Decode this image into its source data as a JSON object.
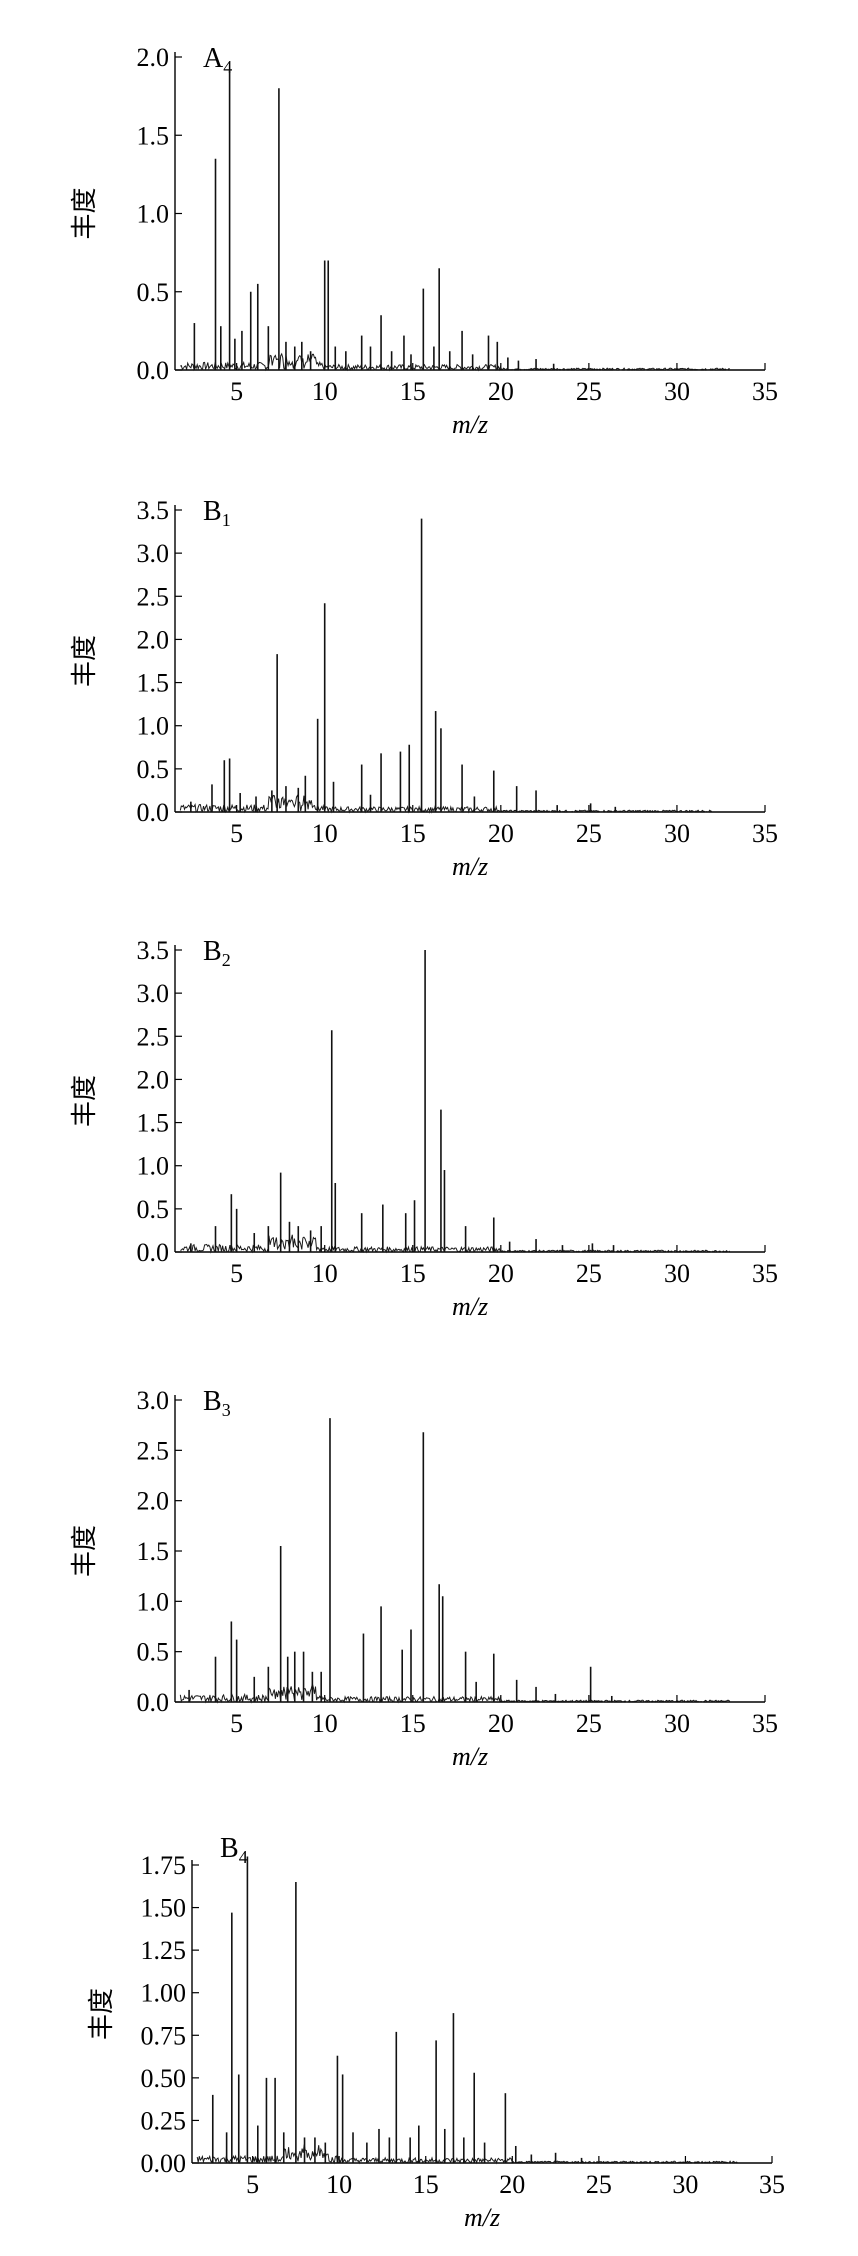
{
  "chart_data": [
    {
      "type": "line",
      "panel_label": "A",
      "panel_subscript": "4",
      "xlabel": "m/z",
      "ylabel": "丰度",
      "xlim": [
        1.5,
        35
      ],
      "ylim": [
        0,
        2.0
      ],
      "xticks": [
        "5",
        "10",
        "15",
        "20",
        "25",
        "30",
        "35"
      ],
      "yticks": [
        "0.0",
        "0.5",
        "1.0",
        "1.5",
        "2.0"
      ],
      "data_end": 33,
      "series": [
        {
          "values": [
            [
              2.6,
              0.3
            ],
            [
              3.8,
              1.35
            ],
            [
              4.1,
              0.28
            ],
            [
              4.6,
              1.92
            ],
            [
              4.9,
              0.2
            ],
            [
              5.3,
              0.25
            ],
            [
              5.8,
              0.5
            ],
            [
              6.2,
              0.55
            ],
            [
              6.8,
              0.28
            ],
            [
              7.4,
              1.8
            ],
            [
              7.8,
              0.18
            ],
            [
              8.3,
              0.15
            ],
            [
              8.7,
              0.18
            ],
            [
              9.2,
              0.12
            ],
            [
              10.0,
              0.7
            ],
            [
              10.2,
              0.7
            ],
            [
              10.6,
              0.15
            ],
            [
              11.2,
              0.12
            ],
            [
              12.1,
              0.22
            ],
            [
              12.6,
              0.15
            ],
            [
              13.2,
              0.35
            ],
            [
              13.8,
              0.12
            ],
            [
              14.5,
              0.22
            ],
            [
              14.9,
              0.1
            ],
            [
              15.6,
              0.52
            ],
            [
              16.2,
              0.15
            ],
            [
              16.5,
              0.65
            ],
            [
              17.1,
              0.12
            ],
            [
              17.8,
              0.25
            ],
            [
              18.4,
              0.1
            ],
            [
              19.3,
              0.22
            ],
            [
              19.8,
              0.18
            ],
            [
              20.4,
              0.08
            ],
            [
              21.0,
              0.06
            ],
            [
              22.0,
              0.07
            ],
            [
              23.0,
              0.04
            ]
          ]
        }
      ]
    },
    {
      "type": "line",
      "panel_label": "B",
      "panel_subscript": "1",
      "xlabel": "m/z",
      "ylabel": "丰度",
      "xlim": [
        1.5,
        35
      ],
      "ylim": [
        0,
        3.5
      ],
      "xticks": [
        "5",
        "10",
        "15",
        "20",
        "25",
        "30",
        "35"
      ],
      "yticks": [
        "0.0",
        "0.5",
        "1.0",
        "1.5",
        "2.0",
        "2.5",
        "3.0",
        "3.5"
      ],
      "data_end": 32,
      "series": [
        {
          "values": [
            [
              2.4,
              0.12
            ],
            [
              3.6,
              0.32
            ],
            [
              4.3,
              0.6
            ],
            [
              4.6,
              0.62
            ],
            [
              5.2,
              0.22
            ],
            [
              6.1,
              0.18
            ],
            [
              7.0,
              0.25
            ],
            [
              7.3,
              1.83
            ],
            [
              7.8,
              0.3
            ],
            [
              8.5,
              0.28
            ],
            [
              8.9,
              0.42
            ],
            [
              9.6,
              1.08
            ],
            [
              10.0,
              2.42
            ],
            [
              10.5,
              0.35
            ],
            [
              12.1,
              0.55
            ],
            [
              12.6,
              0.2
            ],
            [
              13.2,
              0.68
            ],
            [
              14.3,
              0.7
            ],
            [
              14.8,
              0.78
            ],
            [
              15.5,
              3.4
            ],
            [
              16.3,
              1.17
            ],
            [
              16.6,
              0.97
            ],
            [
              17.8,
              0.55
            ],
            [
              18.5,
              0.18
            ],
            [
              19.6,
              0.48
            ],
            [
              20.9,
              0.3
            ],
            [
              22.0,
              0.25
            ],
            [
              23.2,
              0.08
            ],
            [
              25.1,
              0.1
            ],
            [
              26.5,
              0.06
            ]
          ]
        }
      ]
    },
    {
      "type": "line",
      "panel_label": "B",
      "panel_subscript": "2",
      "xlabel": "m/z",
      "ylabel": "丰度",
      "xlim": [
        1.5,
        35
      ],
      "ylim": [
        0,
        3.5
      ],
      "xticks": [
        "5",
        "10",
        "15",
        "20",
        "25",
        "30",
        "35"
      ],
      "yticks": [
        "0.0",
        "0.5",
        "1.0",
        "1.5",
        "2.0",
        "2.5",
        "3.0",
        "3.5"
      ],
      "data_end": 33,
      "series": [
        {
          "values": [
            [
              2.4,
              0.1
            ],
            [
              3.8,
              0.3
            ],
            [
              4.7,
              0.67
            ],
            [
              5.0,
              0.5
            ],
            [
              6.0,
              0.22
            ],
            [
              6.8,
              0.3
            ],
            [
              7.5,
              0.92
            ],
            [
              8.0,
              0.35
            ],
            [
              8.5,
              0.3
            ],
            [
              9.2,
              0.25
            ],
            [
              9.8,
              0.3
            ],
            [
              10.4,
              2.57
            ],
            [
              10.6,
              0.8
            ],
            [
              12.1,
              0.45
            ],
            [
              13.3,
              0.55
            ],
            [
              14.6,
              0.45
            ],
            [
              15.1,
              0.6
            ],
            [
              15.7,
              3.5
            ],
            [
              16.6,
              1.65
            ],
            [
              16.8,
              0.95
            ],
            [
              18.0,
              0.3
            ],
            [
              19.6,
              0.4
            ],
            [
              20.5,
              0.12
            ],
            [
              22.0,
              0.15
            ],
            [
              23.5,
              0.08
            ],
            [
              25.2,
              0.1
            ],
            [
              26.4,
              0.08
            ]
          ]
        }
      ]
    },
    {
      "type": "line",
      "panel_label": "B",
      "panel_subscript": "3",
      "xlabel": "m/z",
      "ylabel": "丰度",
      "xlim": [
        1.5,
        35
      ],
      "ylim": [
        0,
        3.0
      ],
      "xticks": [
        "5",
        "10",
        "15",
        "20",
        "25",
        "30",
        "35"
      ],
      "yticks": [
        "0.0",
        "0.5",
        "1.0",
        "1.5",
        "2.0",
        "2.5",
        "3.0"
      ],
      "data_end": 33,
      "series": [
        {
          "values": [
            [
              2.3,
              0.12
            ],
            [
              3.8,
              0.45
            ],
            [
              4.7,
              0.8
            ],
            [
              5.0,
              0.62
            ],
            [
              6.0,
              0.25
            ],
            [
              6.8,
              0.35
            ],
            [
              7.5,
              1.55
            ],
            [
              7.9,
              0.45
            ],
            [
              8.3,
              0.5
            ],
            [
              8.8,
              0.5
            ],
            [
              9.3,
              0.3
            ],
            [
              9.8,
              0.3
            ],
            [
              10.3,
              2.82
            ],
            [
              12.2,
              0.68
            ],
            [
              13.2,
              0.95
            ],
            [
              14.4,
              0.52
            ],
            [
              14.9,
              0.72
            ],
            [
              15.6,
              2.68
            ],
            [
              16.5,
              1.17
            ],
            [
              16.7,
              1.05
            ],
            [
              18.0,
              0.5
            ],
            [
              18.6,
              0.2
            ],
            [
              19.6,
              0.48
            ],
            [
              20.9,
              0.22
            ],
            [
              22.0,
              0.15
            ],
            [
              23.1,
              0.08
            ],
            [
              25.1,
              0.35
            ],
            [
              26.3,
              0.06
            ]
          ]
        }
      ]
    },
    {
      "type": "line",
      "panel_label": "B",
      "panel_subscript": "4",
      "xlabel": "m/z",
      "ylabel": "丰度",
      "xlim": [
        1.5,
        35
      ],
      "ylim": [
        0,
        1.75
      ],
      "xticks": [
        "5",
        "10",
        "15",
        "20",
        "25",
        "30",
        "35"
      ],
      "yticks": [
        "0.00",
        "0.25",
        "0.50",
        "0.75",
        "1.00",
        "1.25",
        "1.50",
        "1.75"
      ],
      "data_end": 33,
      "series": [
        {
          "values": [
            [
              2.7,
              0.4
            ],
            [
              3.5,
              0.18
            ],
            [
              3.8,
              1.47
            ],
            [
              4.2,
              0.52
            ],
            [
              4.7,
              1.8
            ],
            [
              5.3,
              0.22
            ],
            [
              5.8,
              0.5
            ],
            [
              6.3,
              0.5
            ],
            [
              6.8,
              0.18
            ],
            [
              7.5,
              1.65
            ],
            [
              8.0,
              0.15
            ],
            [
              8.6,
              0.15
            ],
            [
              9.2,
              0.12
            ],
            [
              9.9,
              0.63
            ],
            [
              10.2,
              0.52
            ],
            [
              10.8,
              0.18
            ],
            [
              11.6,
              0.12
            ],
            [
              12.3,
              0.2
            ],
            [
              12.9,
              0.15
            ],
            [
              13.3,
              0.77
            ],
            [
              14.1,
              0.15
            ],
            [
              14.6,
              0.22
            ],
            [
              15.6,
              0.72
            ],
            [
              16.1,
              0.2
            ],
            [
              16.6,
              0.88
            ],
            [
              17.2,
              0.15
            ],
            [
              17.8,
              0.53
            ],
            [
              18.4,
              0.12
            ],
            [
              19.6,
              0.41
            ],
            [
              20.2,
              0.1
            ],
            [
              21.1,
              0.05
            ],
            [
              22.5,
              0.06
            ],
            [
              24.0,
              0.03
            ]
          ]
        }
      ]
    }
  ]
}
